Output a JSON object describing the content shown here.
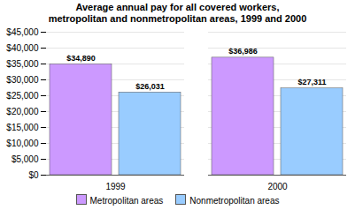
{
  "chart_data": {
    "type": "bar",
    "title": "Average annual pay for all covered workers,\nmetropolitan and nonmetropolitan areas, 1999 and 2000",
    "categories": [
      "1999",
      "2000"
    ],
    "series": [
      {
        "name": "Metropolitan areas",
        "color": "#CC99FF",
        "values": [
          34890,
          36986
        ],
        "value_labels": [
          "$34,890",
          "$36,986"
        ]
      },
      {
        "name": "Nonmetropolitan areas",
        "color": "#99CCFF",
        "values": [
          26031,
          27311
        ],
        "value_labels": [
          "$26,031",
          "$27,311"
        ]
      }
    ],
    "ylim": [
      0,
      45000
    ],
    "yticks": [
      {
        "value": 0,
        "label": "$0"
      },
      {
        "value": 5000,
        "label": "$5,000"
      },
      {
        "value": 10000,
        "label": "$10,000"
      },
      {
        "value": 15000,
        "label": "$15,000"
      },
      {
        "value": 20000,
        "label": "$20,000"
      },
      {
        "value": 25000,
        "label": "$25,000"
      },
      {
        "value": 30000,
        "label": "$30,000"
      },
      {
        "value": 35000,
        "label": "$35,000"
      },
      {
        "value": 40000,
        "label": "$40,000"
      },
      {
        "value": 45000,
        "label": "$45,000"
      }
    ],
    "grid": true,
    "legend": "bottom",
    "data_labels": true
  }
}
